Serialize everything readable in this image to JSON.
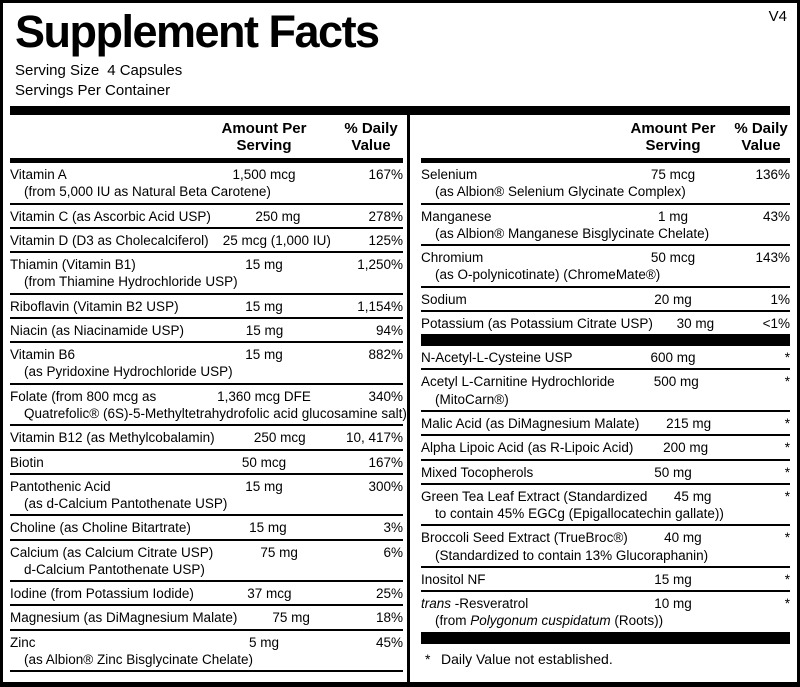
{
  "version_tag": "V4",
  "title": "Supplement Facts",
  "serving": {
    "size_label": "Serving Size",
    "size_value": "4 Capsules",
    "per_container_label": "Servings Per Container"
  },
  "column_header": {
    "amount": "Amount Per\nServing",
    "dv": "% Daily\nValue"
  },
  "left_rows": [
    {
      "name": "Vitamin A",
      "sub": "(from 5,000 IU as Natural Beta Carotene)",
      "amount": "1,500 mcg",
      "dv": "167%"
    },
    {
      "name": "Vitamin C (as Ascorbic Acid USP)",
      "amount": "250 mg",
      "dv": "278%"
    },
    {
      "name": "Vitamin D (D3 as Cholecalciferol)",
      "amount": "25 mcg (1,000 IU)",
      "dv": "125%"
    },
    {
      "name": "Thiamin (Vitamin B1)",
      "sub": "(from Thiamine Hydrochloride USP)",
      "amount": "15 mg",
      "dv": "1,250%"
    },
    {
      "name": "Riboflavin (Vitamin B2 USP)",
      "amount": "15 mg",
      "dv": "1,154%"
    },
    {
      "name": "Niacin (as Niacinamide USP)",
      "amount": "15 mg",
      "dv": "94%"
    },
    {
      "name": "Vitamin B6",
      "sub": "(as Pyridoxine Hydrochloride USP)",
      "amount": "15 mg",
      "dv": "882%"
    },
    {
      "name": "Folate (from 800 mcg as",
      "sub": "Quatrefolic® (6S)-5-Methyltetrahydrofolic acid glucosamine salt)",
      "amount": "1,360 mcg DFE",
      "dv": "340%"
    },
    {
      "name": "Vitamin B12 (as Methylcobalamin)",
      "amount": "250 mcg",
      "dv": "10, 417%"
    },
    {
      "name": "Biotin",
      "amount": "50 mcg",
      "dv": "167%"
    },
    {
      "name": "Pantothenic Acid",
      "sub": "(as d-Calcium Pantothenate USP)",
      "amount": "15 mg",
      "dv": "300%"
    },
    {
      "name": "Choline (as Choline Bitartrate)",
      "amount": "15 mg",
      "dv": "3%"
    },
    {
      "name": "Calcium (as Calcium Citrate USP)",
      "sub": "d-Calcium Pantothenate USP)",
      "amount": "75 mg",
      "dv": "6%"
    },
    {
      "name": "Iodine (from Potassium Iodide)",
      "amount": "37 mcg",
      "dv": "25%"
    },
    {
      "name": "Magnesium (as DiMagnesium Malate)",
      "amount": "75 mg",
      "dv": "18%"
    },
    {
      "name": "Zinc",
      "sub": "(as Albion® Zinc Bisglycinate Chelate)",
      "amount": "5 mg",
      "dv": "45%"
    }
  ],
  "right_rows": [
    {
      "name": "Selenium",
      "sub": "(as Albion® Selenium Glycinate Complex)",
      "amount": "75 mcg",
      "dv": "136%"
    },
    {
      "name": "Manganese",
      "sub": "(as Albion® Manganese Bisglycinate Chelate)",
      "amount": "1 mg",
      "dv": "43%"
    },
    {
      "name": "Chromium",
      "sub": "(as O-polynicotinate) (ChromeMate®)",
      "amount": "50 mcg",
      "dv": "143%"
    },
    {
      "name": "Sodium",
      "amount": "20 mg",
      "dv": "1%"
    },
    {
      "name": "Potassium (as Potassium Citrate USP)",
      "amount": "30 mg",
      "dv": "<1%"
    },
    {
      "type": "section_divider"
    },
    {
      "name": "N-Acetyl-L-Cysteine USP",
      "amount": "600 mg",
      "dv": "*"
    },
    {
      "name": "Acetyl L-Carnitine Hydrochloride",
      "sub": "(MitoCarn®)",
      "amount": "500 mg",
      "dv": "*"
    },
    {
      "name": "Malic Acid (as DiMagnesium Malate)",
      "amount": "215 mg",
      "dv": "*"
    },
    {
      "name": "Alpha Lipoic Acid (as R-Lipoic Acid)",
      "amount": "200 mg",
      "dv": "*"
    },
    {
      "name": "Mixed Tocopherols",
      "amount": "50 mg",
      "dv": "*"
    },
    {
      "name": "Green Tea Leaf Extract (Standardized",
      "sub": "to contain 45% EGCg (Epigallocatechin gallate))",
      "amount": "45 mg",
      "dv": "*"
    },
    {
      "name": "Broccoli Seed Extract (TrueBroc®)",
      "sub": "(Standardized to contain 13% Glucoraphanin)",
      "amount": "40 mg",
      "dv": "*"
    },
    {
      "name": "Inositol NF",
      "amount": "15 mg",
      "dv": "*"
    },
    {
      "name_segments": [
        {
          "t": "trans ",
          "i": true
        },
        {
          "t": "-Resveratrol"
        }
      ],
      "sub_segments": [
        {
          "t": "(from "
        },
        {
          "t": "Polygonum cuspidatum",
          "i": true
        },
        {
          "t": " (Roots))"
        }
      ],
      "amount": "10 mg",
      "dv": "*"
    }
  ],
  "footnote": {
    "symbol": "*",
    "text": "Daily Value not established."
  },
  "colors": {
    "ink": "#000000",
    "paper": "#ffffff"
  }
}
